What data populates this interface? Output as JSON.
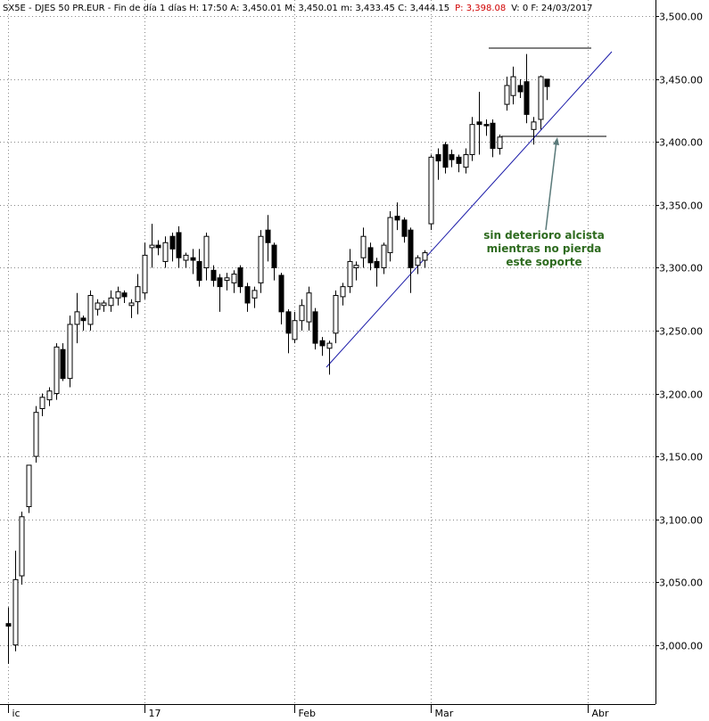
{
  "chart_data": {
    "type": "candlestick",
    "header": [
      {
        "text": "SX5E - DJES 50 PR.EUR - Fin de día 1 días  H: 17:50  A: 3,450.01  M: 3,450.01  m: 3,433.45  C: 3,444.15",
        "color": "#000000"
      },
      {
        "text": "P: 3,398.08",
        "color": "#d00000"
      },
      {
        "text": "V: 0  F: 24/03/2017",
        "color": "#000000"
      }
    ],
    "x": [
      0,
      1,
      2,
      3,
      4,
      5,
      6,
      7,
      8,
      9,
      10,
      11,
      12,
      13,
      14,
      15,
      16,
      17,
      18,
      19,
      20,
      21,
      22,
      23,
      24,
      25,
      26,
      27,
      28,
      29,
      30,
      31,
      32,
      33,
      34,
      35,
      36,
      37,
      38,
      39,
      40,
      41,
      42,
      43,
      44,
      45,
      46,
      47,
      48,
      49,
      50,
      51,
      52,
      53,
      54,
      55,
      56,
      57,
      58,
      59,
      60,
      61,
      62,
      63,
      64,
      65,
      66,
      67,
      68,
      69,
      70,
      71,
      72,
      73,
      74,
      75,
      76,
      77,
      78,
      79
    ],
    "open": [
      3017,
      3000,
      3055,
      3110,
      3150,
      3188,
      3195,
      3200,
      3235,
      3212,
      3255,
      3260,
      3255,
      3267,
      3270,
      3270,
      3276,
      3280,
      3270,
      3273,
      3280,
      3316,
      3318,
      3305,
      3325,
      3328,
      3306,
      3308,
      3305,
      3300,
      3298,
      3292,
      3290,
      3288,
      3300,
      3285,
      3276,
      3288,
      3330,
      3318,
      3294,
      3265,
      3243,
      3258,
      3257,
      3265,
      3242,
      3236,
      3248,
      3277,
      3285,
      3300,
      3308,
      3316,
      3305,
      3300,
      3312,
      3341,
      3338,
      3330,
      3302,
      3306,
      3335,
      3390,
      3398,
      3390,
      3388,
      3380,
      3390,
      3416,
      3414,
      3415,
      3395,
      3430,
      3437,
      3445,
      3448,
      3410,
      3418,
      3450.01
    ],
    "high": [
      3030,
      3075,
      3106,
      3143,
      3190,
      3200,
      3205,
      3240,
      3240,
      3262,
      3280,
      3262,
      3282,
      3275,
      3274,
      3282,
      3285,
      3282,
      3275,
      3295,
      3320,
      3335,
      3322,
      3325,
      3328,
      3333,
      3312,
      3315,
      3315,
      3328,
      3302,
      3295,
      3296,
      3298,
      3302,
      3288,
      3285,
      3330,
      3342,
      3320,
      3296,
      3267,
      3265,
      3275,
      3285,
      3268,
      3245,
      3242,
      3282,
      3288,
      3315,
      3305,
      3332,
      3320,
      3308,
      3320,
      3345,
      3352,
      3340,
      3332,
      3310,
      3314,
      3390,
      3395,
      3400,
      3394,
      3390,
      3395,
      3420,
      3440,
      3418,
      3418,
      3406,
      3452,
      3460,
      3450,
      3470,
      3420,
      3453,
      3450.01
    ],
    "low": [
      2985,
      2995,
      3048,
      3105,
      3145,
      3182,
      3190,
      3195,
      3210,
      3205,
      3240,
      3250,
      3250,
      3262,
      3265,
      3265,
      3270,
      3272,
      3260,
      3263,
      3275,
      3300,
      3310,
      3300,
      3305,
      3300,
      3300,
      3295,
      3285,
      3290,
      3285,
      3265,
      3282,
      3280,
      3280,
      3265,
      3268,
      3280,
      3305,
      3290,
      3255,
      3232,
      3240,
      3250,
      3250,
      3235,
      3230,
      3215,
      3240,
      3270,
      3280,
      3290,
      3300,
      3298,
      3285,
      3295,
      3305,
      3330,
      3320,
      3280,
      3295,
      3300,
      3330,
      3370,
      3375,
      3380,
      3376,
      3375,
      3385,
      3390,
      3405,
      3388,
      3390,
      3425,
      3430,
      3435,
      3415,
      3398,
      3410,
      3433.45
    ],
    "close": [
      3015,
      3052,
      3102,
      3143,
      3185,
      3197,
      3202,
      3237,
      3212,
      3255,
      3265,
      3258,
      3278,
      3272,
      3272,
      3276,
      3281,
      3277,
      3272,
      3285,
      3310,
      3318,
      3316,
      3320,
      3315,
      3308,
      3310,
      3306,
      3290,
      3325,
      3290,
      3285,
      3292,
      3295,
      3285,
      3272,
      3282,
      3325,
      3320,
      3300,
      3265,
      3248,
      3258,
      3270,
      3280,
      3240,
      3238,
      3240,
      3278,
      3285,
      3305,
      3302,
      3325,
      3304,
      3300,
      3318,
      3340,
      3338,
      3325,
      3300,
      3308,
      3312,
      3388,
      3385,
      3380,
      3386,
      3383,
      3390,
      3414,
      3414,
      3413,
      3395,
      3404,
      3445,
      3452,
      3440,
      3422,
      3416,
      3452,
      3444.15
    ],
    "up_color": "#ffffff",
    "down_color": "#000000",
    "edge_color": "#000000",
    "xlim": [
      -1.2,
      94.9
    ],
    "xticks": [
      {
        "value": 0,
        "label": "ic"
      },
      {
        "value": 20,
        "label": "17"
      },
      {
        "value": 42,
        "label": "Feb"
      },
      {
        "value": 62,
        "label": "Mar"
      },
      {
        "value": 85,
        "label": "Abr"
      }
    ],
    "ylim": [
      2953,
      3513
    ],
    "yticks": [
      {
        "value": 3000,
        "label": "3,000.00"
      },
      {
        "value": 3050,
        "label": "3,050.00"
      },
      {
        "value": 3100,
        "label": "3,100.00"
      },
      {
        "value": 3150,
        "label": "3,150.00"
      },
      {
        "value": 3200,
        "label": "3,200.00"
      },
      {
        "value": 3250,
        "label": "3,250.00"
      },
      {
        "value": 3300,
        "label": "3,300.00"
      },
      {
        "value": 3350,
        "label": "3,350.00"
      },
      {
        "value": 3400,
        "label": "3,400.00"
      },
      {
        "value": 3450,
        "label": "3,450.00"
      },
      {
        "value": 3500,
        "label": "3,500.00"
      }
    ],
    "grid": true,
    "annotation": [
      "sin deterioro alcista",
      "mientras no pierda",
      "este soporte"
    ],
    "annotation_color": "#2e6b1f"
  }
}
